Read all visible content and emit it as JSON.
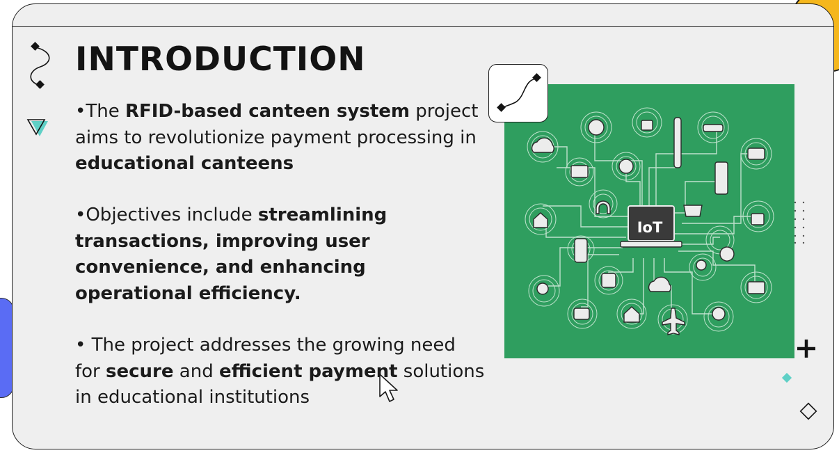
{
  "slide": {
    "title": "INTRODUCTION",
    "paragraph1": {
      "bullet": "•",
      "t1": "The ",
      "b1": "RFID-based canteen system",
      "t2": " project aims to revolutionize payment processing in ",
      "b2": "educational canteens"
    },
    "paragraph2": {
      "bullet": "•",
      "t1": "Objectives include ",
      "b1": "streamlining transactions, improving user convenience, and enhancing operational efficiency."
    },
    "paragraph3": {
      "bullet": "•",
      "t1": " The project addresses the growing need for ",
      "b1": "secure",
      "t2": " and ",
      "b2": "efficient payment",
      "t3": " solutions in educational institutions"
    }
  },
  "image": {
    "center_label": "IoT",
    "background_color": "#2f9e5f"
  },
  "colors": {
    "card_background": "#efefef",
    "accent_yellow": "#f5b71c",
    "accent_blue": "#5a6cf4",
    "accent_teal": "#5fd0c6"
  },
  "icons": [
    "squiggle-icon",
    "triangle-icon",
    "curve-icon",
    "plus-icon",
    "diamond-icon",
    "dot-grid-icon",
    "cursor-icon"
  ]
}
